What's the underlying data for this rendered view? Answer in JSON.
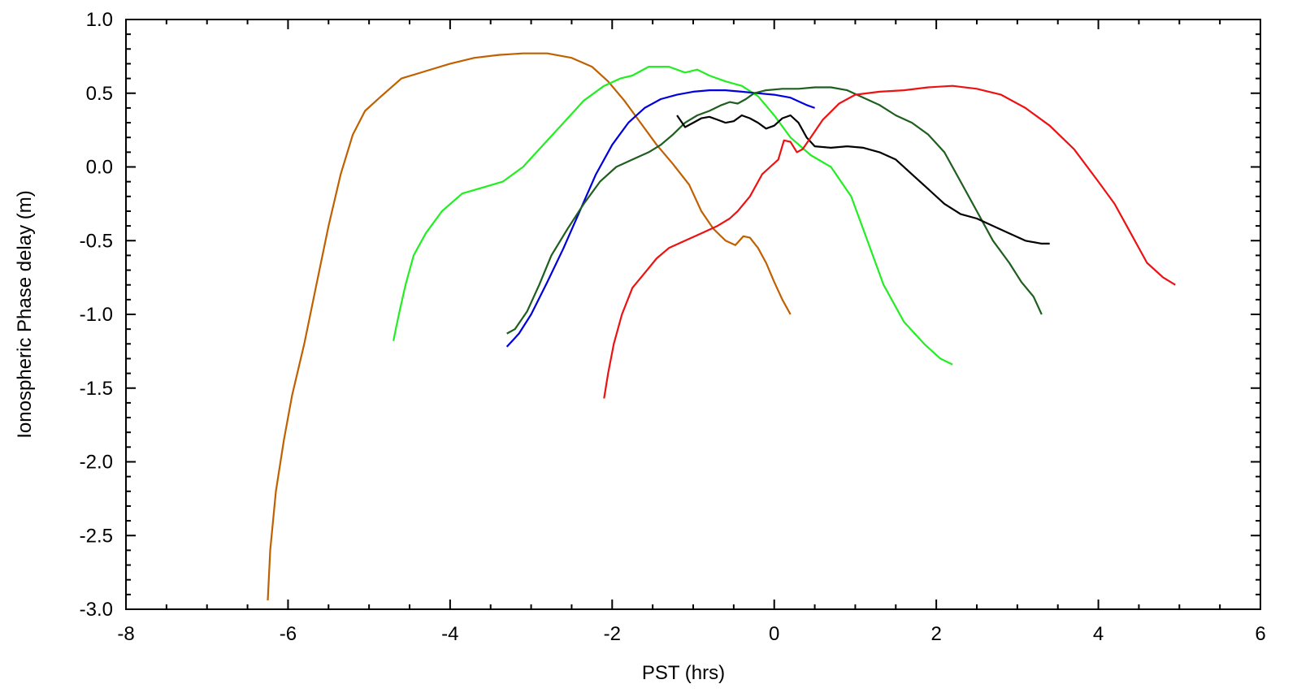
{
  "chart_data": {
    "type": "line",
    "title": "",
    "xlabel": "PST (hrs)",
    "ylabel": "Ionospheric Phase delay (m)",
    "xlim": [
      -8,
      6
    ],
    "ylim": [
      -3.0,
      1.0
    ],
    "x_ticks": [
      "-8",
      "-6",
      "-4",
      "-2",
      "0",
      "2",
      "4",
      "6"
    ],
    "y_ticks": [
      "1.0",
      "0.5",
      "0.0",
      "-0.5",
      "-1.0",
      "-1.5",
      "-2.0",
      "-2.5",
      "-3.0"
    ],
    "grid": false,
    "legend": "none",
    "series": [
      {
        "color": "#c06000",
        "points": [
          [
            -6.25,
            -2.94
          ],
          [
            -6.22,
            -2.6
          ],
          [
            -6.15,
            -2.2
          ],
          [
            -6.05,
            -1.85
          ],
          [
            -5.95,
            -1.55
          ],
          [
            -5.8,
            -1.2
          ],
          [
            -5.65,
            -0.8
          ],
          [
            -5.5,
            -0.4
          ],
          [
            -5.35,
            -0.05
          ],
          [
            -5.2,
            0.22
          ],
          [
            -5.05,
            0.38
          ],
          [
            -4.85,
            0.48
          ],
          [
            -4.6,
            0.6
          ],
          [
            -4.3,
            0.65
          ],
          [
            -4.0,
            0.7
          ],
          [
            -3.7,
            0.74
          ],
          [
            -3.4,
            0.76
          ],
          [
            -3.1,
            0.77
          ],
          [
            -2.8,
            0.77
          ],
          [
            -2.5,
            0.74
          ],
          [
            -2.25,
            0.68
          ],
          [
            -2.05,
            0.58
          ],
          [
            -1.85,
            0.45
          ],
          [
            -1.65,
            0.3
          ],
          [
            -1.45,
            0.15
          ],
          [
            -1.25,
            0.02
          ],
          [
            -1.05,
            -0.12
          ],
          [
            -0.9,
            -0.3
          ],
          [
            -0.75,
            -0.42
          ],
          [
            -0.6,
            -0.5
          ],
          [
            -0.48,
            -0.53
          ],
          [
            -0.38,
            -0.47
          ],
          [
            -0.3,
            -0.48
          ],
          [
            -0.2,
            -0.55
          ],
          [
            -0.1,
            -0.65
          ],
          [
            0.0,
            -0.78
          ],
          [
            0.1,
            -0.9
          ],
          [
            0.2,
            -1.0
          ]
        ]
      },
      {
        "color": "#22ee22",
        "points": [
          [
            -4.7,
            -1.18
          ],
          [
            -4.67,
            -1.1
          ],
          [
            -4.62,
            -0.97
          ],
          [
            -4.55,
            -0.8
          ],
          [
            -4.45,
            -0.6
          ],
          [
            -4.3,
            -0.45
          ],
          [
            -4.1,
            -0.3
          ],
          [
            -3.85,
            -0.18
          ],
          [
            -3.6,
            -0.14
          ],
          [
            -3.35,
            -0.1
          ],
          [
            -3.1,
            0.0
          ],
          [
            -2.85,
            0.15
          ],
          [
            -2.6,
            0.3
          ],
          [
            -2.35,
            0.45
          ],
          [
            -2.1,
            0.55
          ],
          [
            -1.9,
            0.6
          ],
          [
            -1.75,
            0.62
          ],
          [
            -1.55,
            0.68
          ],
          [
            -1.3,
            0.68
          ],
          [
            -1.1,
            0.64
          ],
          [
            -0.95,
            0.66
          ],
          [
            -0.8,
            0.62
          ],
          [
            -0.6,
            0.58
          ],
          [
            -0.4,
            0.55
          ],
          [
            -0.2,
            0.48
          ],
          [
            0.0,
            0.35
          ],
          [
            0.2,
            0.2
          ],
          [
            0.45,
            0.08
          ],
          [
            0.7,
            0.0
          ],
          [
            0.95,
            -0.2
          ],
          [
            1.15,
            -0.5
          ],
          [
            1.35,
            -0.8
          ],
          [
            1.6,
            -1.05
          ],
          [
            1.85,
            -1.2
          ],
          [
            2.05,
            -1.3
          ],
          [
            2.2,
            -1.34
          ]
        ]
      },
      {
        "color": "#0000dd",
        "points": [
          [
            -3.3,
            -1.22
          ],
          [
            -3.15,
            -1.13
          ],
          [
            -3.0,
            -1.0
          ],
          [
            -2.8,
            -0.78
          ],
          [
            -2.6,
            -0.55
          ],
          [
            -2.4,
            -0.3
          ],
          [
            -2.2,
            -0.05
          ],
          [
            -2.0,
            0.15
          ],
          [
            -1.8,
            0.3
          ],
          [
            -1.6,
            0.4
          ],
          [
            -1.4,
            0.46
          ],
          [
            -1.2,
            0.49
          ],
          [
            -1.0,
            0.51
          ],
          [
            -0.8,
            0.52
          ],
          [
            -0.6,
            0.52
          ],
          [
            -0.4,
            0.51
          ],
          [
            -0.2,
            0.5
          ],
          [
            0.0,
            0.49
          ],
          [
            0.2,
            0.47
          ],
          [
            0.4,
            0.42
          ],
          [
            0.5,
            0.4
          ]
        ]
      },
      {
        "color": "#1e5e1e",
        "points": [
          [
            -3.3,
            -1.13
          ],
          [
            -3.2,
            -1.1
          ],
          [
            -3.05,
            -0.98
          ],
          [
            -2.9,
            -0.8
          ],
          [
            -2.75,
            -0.6
          ],
          [
            -2.55,
            -0.42
          ],
          [
            -2.35,
            -0.25
          ],
          [
            -2.15,
            -0.1
          ],
          [
            -1.95,
            0.0
          ],
          [
            -1.75,
            0.05
          ],
          [
            -1.55,
            0.1
          ],
          [
            -1.4,
            0.15
          ],
          [
            -1.25,
            0.22
          ],
          [
            -1.1,
            0.3
          ],
          [
            -0.95,
            0.35
          ],
          [
            -0.8,
            0.38
          ],
          [
            -0.65,
            0.42
          ],
          [
            -0.55,
            0.44
          ],
          [
            -0.45,
            0.43
          ],
          [
            -0.35,
            0.46
          ],
          [
            -0.25,
            0.5
          ],
          [
            -0.1,
            0.52
          ],
          [
            0.1,
            0.53
          ],
          [
            0.3,
            0.53
          ],
          [
            0.5,
            0.54
          ],
          [
            0.7,
            0.54
          ],
          [
            0.9,
            0.52
          ],
          [
            1.1,
            0.47
          ],
          [
            1.3,
            0.42
          ],
          [
            1.5,
            0.35
          ],
          [
            1.7,
            0.3
          ],
          [
            1.9,
            0.22
          ],
          [
            2.1,
            0.1
          ],
          [
            2.3,
            -0.1
          ],
          [
            2.5,
            -0.3
          ],
          [
            2.7,
            -0.5
          ],
          [
            2.9,
            -0.65
          ],
          [
            3.05,
            -0.78
          ],
          [
            3.2,
            -0.88
          ],
          [
            3.3,
            -1.0
          ]
        ]
      },
      {
        "color": "#000000",
        "points": [
          [
            -1.2,
            0.35
          ],
          [
            -1.1,
            0.27
          ],
          [
            -1.0,
            0.3
          ],
          [
            -0.9,
            0.33
          ],
          [
            -0.8,
            0.34
          ],
          [
            -0.7,
            0.32
          ],
          [
            -0.6,
            0.3
          ],
          [
            -0.5,
            0.31
          ],
          [
            -0.4,
            0.35
          ],
          [
            -0.3,
            0.33
          ],
          [
            -0.2,
            0.3
          ],
          [
            -0.1,
            0.26
          ],
          [
            0.0,
            0.28
          ],
          [
            0.1,
            0.33
          ],
          [
            0.2,
            0.35
          ],
          [
            0.3,
            0.3
          ],
          [
            0.4,
            0.2
          ],
          [
            0.5,
            0.14
          ],
          [
            0.7,
            0.13
          ],
          [
            0.9,
            0.14
          ],
          [
            1.1,
            0.13
          ],
          [
            1.3,
            0.1
          ],
          [
            1.5,
            0.05
          ],
          [
            1.7,
            -0.05
          ],
          [
            1.9,
            -0.15
          ],
          [
            2.1,
            -0.25
          ],
          [
            2.3,
            -0.32
          ],
          [
            2.5,
            -0.35
          ],
          [
            2.7,
            -0.4
          ],
          [
            2.9,
            -0.45
          ],
          [
            3.1,
            -0.5
          ],
          [
            3.3,
            -0.52
          ],
          [
            3.4,
            -0.52
          ]
        ]
      },
      {
        "color": "#ee1111",
        "points": [
          [
            -2.1,
            -1.57
          ],
          [
            -2.05,
            -1.4
          ],
          [
            -1.98,
            -1.2
          ],
          [
            -1.88,
            -1.0
          ],
          [
            -1.75,
            -0.82
          ],
          [
            -1.6,
            -0.72
          ],
          [
            -1.45,
            -0.62
          ],
          [
            -1.3,
            -0.55
          ],
          [
            -1.1,
            -0.5
          ],
          [
            -0.9,
            -0.45
          ],
          [
            -0.7,
            -0.4
          ],
          [
            -0.55,
            -0.35
          ],
          [
            -0.45,
            -0.3
          ],
          [
            -0.3,
            -0.2
          ],
          [
            -0.15,
            -0.05
          ],
          [
            -0.05,
            0.0
          ],
          [
            0.05,
            0.05
          ],
          [
            0.12,
            0.18
          ],
          [
            0.2,
            0.17
          ],
          [
            0.28,
            0.1
          ],
          [
            0.35,
            0.12
          ],
          [
            0.45,
            0.2
          ],
          [
            0.6,
            0.32
          ],
          [
            0.8,
            0.43
          ],
          [
            1.0,
            0.49
          ],
          [
            1.3,
            0.51
          ],
          [
            1.6,
            0.52
          ],
          [
            1.9,
            0.54
          ],
          [
            2.2,
            0.55
          ],
          [
            2.5,
            0.53
          ],
          [
            2.8,
            0.49
          ],
          [
            3.1,
            0.4
          ],
          [
            3.4,
            0.28
          ],
          [
            3.7,
            0.12
          ],
          [
            4.0,
            -0.1
          ],
          [
            4.2,
            -0.25
          ],
          [
            4.4,
            -0.45
          ],
          [
            4.6,
            -0.65
          ],
          [
            4.8,
            -0.75
          ],
          [
            4.95,
            -0.8
          ]
        ]
      }
    ]
  }
}
